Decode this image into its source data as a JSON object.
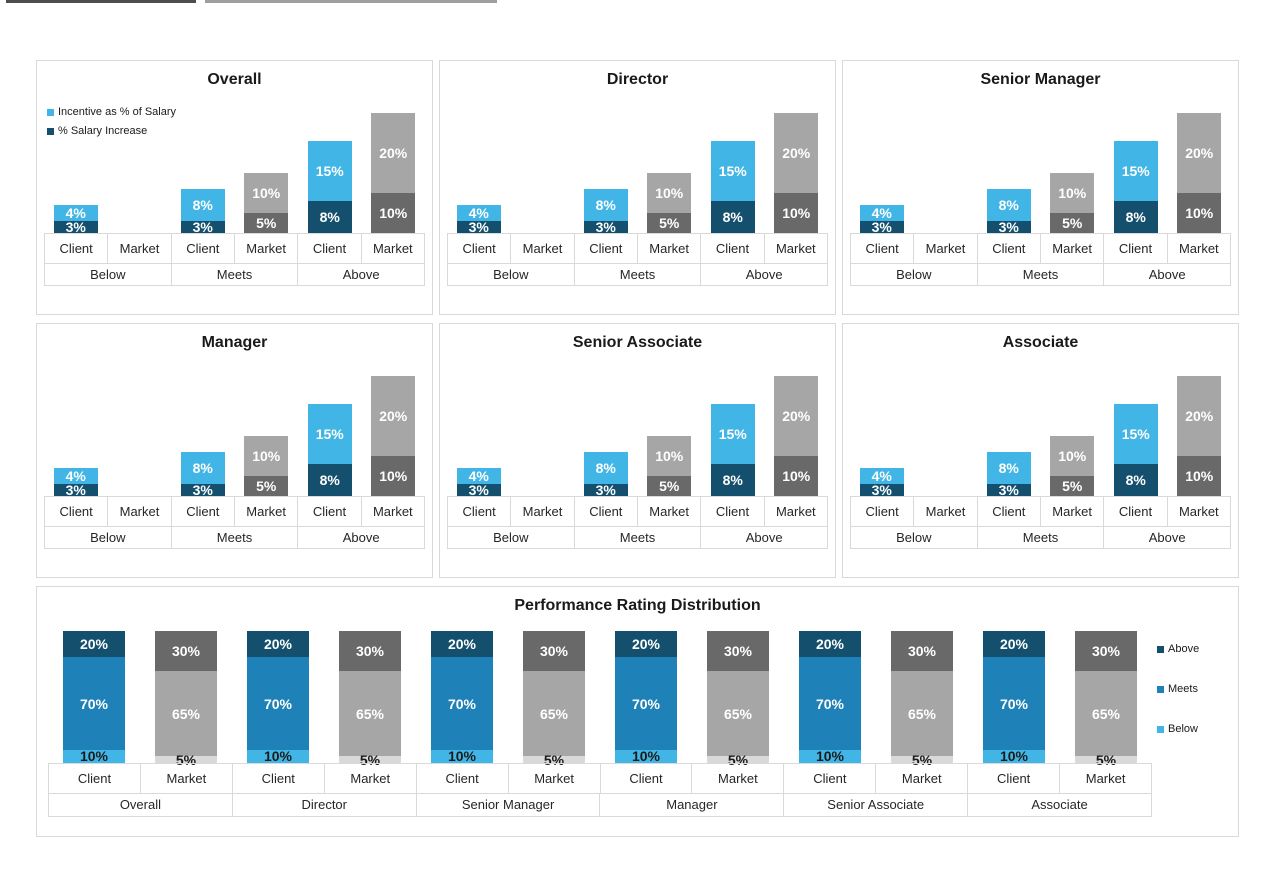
{
  "colors": {
    "incentive_client": "#41B6E6",
    "increase_client": "#14506E",
    "incentive_market": "#A6A6A6",
    "increase_market": "#696969",
    "dist_below_client": "#41B6E6",
    "dist_meets_client": "#1E81B8",
    "dist_above_client": "#14506E",
    "dist_below_market": "#D9D9D9",
    "dist_meets_market": "#A6A6A6",
    "dist_above_market": "#696969",
    "panel_border": "#D9D9D9",
    "value_label_light": "#FFFFFF",
    "value_label_dark": "#1A1A1A"
  },
  "panels": {
    "titles": [
      "Overall",
      "Director",
      "Senior Manager",
      "Manager",
      "Senior Associate",
      "Associate"
    ],
    "legend": {
      "incentive_label": "Incentive as % of Salary",
      "increase_label": "% Salary Increase"
    },
    "axis_series_labels": [
      "Client",
      "Market"
    ],
    "axis_group_labels": [
      "Below",
      "Meets",
      "Above"
    ],
    "values": {
      "client": {
        "incentive": [
          4,
          8,
          15
        ],
        "increase": [
          3,
          3,
          8
        ]
      },
      "market": {
        "incentive": [
          0,
          10,
          20
        ],
        "increase": [
          0,
          5,
          10
        ]
      }
    }
  },
  "distribution": {
    "title": "Performance Rating Distribution",
    "groups": [
      "Overall",
      "Director",
      "Senior Manager",
      "Manager",
      "Senior Associate",
      "Associate"
    ],
    "axis_series_labels": [
      "Client",
      "Market"
    ],
    "legend_labels": [
      "Above",
      "Meets",
      "Below"
    ],
    "client": {
      "below": 10,
      "meets": 70,
      "above": 20
    },
    "market": {
      "below": 5,
      "meets": 65,
      "above": 30
    }
  },
  "chart_data": [
    {
      "type": "bar",
      "variant": "grouped-stacked",
      "title": "Overall",
      "categories": [
        "Below",
        "Meets",
        "Above"
      ],
      "bar_groups": [
        "Client",
        "Market"
      ],
      "series": [
        {
          "name": "% Salary Increase (Client)",
          "values": [
            3,
            3,
            8
          ]
        },
        {
          "name": "Incentive as % of Salary (Client)",
          "values": [
            4,
            8,
            15
          ]
        },
        {
          "name": "% Salary Increase (Market)",
          "values": [
            0,
            5,
            10
          ]
        },
        {
          "name": "Incentive as % of Salary (Market)",
          "values": [
            0,
            10,
            20
          ]
        }
      ],
      "unit": "%",
      "legend": [
        "Incentive as % of Salary",
        "% Salary Increase"
      ],
      "legend_position": "top-left",
      "legend_visible": true
    },
    {
      "type": "bar",
      "variant": "grouped-stacked",
      "title": "Director",
      "categories": [
        "Below",
        "Meets",
        "Above"
      ],
      "bar_groups": [
        "Client",
        "Market"
      ],
      "series": [
        {
          "name": "% Salary Increase (Client)",
          "values": [
            3,
            3,
            8
          ]
        },
        {
          "name": "Incentive as % of Salary (Client)",
          "values": [
            4,
            8,
            15
          ]
        },
        {
          "name": "% Salary Increase (Market)",
          "values": [
            0,
            5,
            10
          ]
        },
        {
          "name": "Incentive as % of Salary (Market)",
          "values": [
            0,
            10,
            20
          ]
        }
      ],
      "unit": "%",
      "legend_visible": false
    },
    {
      "type": "bar",
      "variant": "grouped-stacked",
      "title": "Senior Manager",
      "categories": [
        "Below",
        "Meets",
        "Above"
      ],
      "bar_groups": [
        "Client",
        "Market"
      ],
      "series": [
        {
          "name": "% Salary Increase (Client)",
          "values": [
            3,
            3,
            8
          ]
        },
        {
          "name": "Incentive as % of Salary (Client)",
          "values": [
            4,
            8,
            15
          ]
        },
        {
          "name": "% Salary Increase (Market)",
          "values": [
            0,
            5,
            10
          ]
        },
        {
          "name": "Incentive as % of Salary (Market)",
          "values": [
            0,
            10,
            20
          ]
        }
      ],
      "unit": "%",
      "legend_visible": false
    },
    {
      "type": "bar",
      "variant": "grouped-stacked",
      "title": "Manager",
      "categories": [
        "Below",
        "Meets",
        "Above"
      ],
      "bar_groups": [
        "Client",
        "Market"
      ],
      "series": [
        {
          "name": "% Salary Increase (Client)",
          "values": [
            3,
            3,
            8
          ]
        },
        {
          "name": "Incentive as % of Salary (Client)",
          "values": [
            4,
            8,
            15
          ]
        },
        {
          "name": "% Salary Increase (Market)",
          "values": [
            0,
            5,
            10
          ]
        },
        {
          "name": "Incentive as % of Salary (Market)",
          "values": [
            0,
            10,
            20
          ]
        }
      ],
      "unit": "%",
      "legend_visible": false
    },
    {
      "type": "bar",
      "variant": "grouped-stacked",
      "title": "Senior Associate",
      "categories": [
        "Below",
        "Meets",
        "Above"
      ],
      "bar_groups": [
        "Client",
        "Market"
      ],
      "series": [
        {
          "name": "% Salary Increase (Client)",
          "values": [
            3,
            3,
            8
          ]
        },
        {
          "name": "Incentive as % of Salary (Client)",
          "values": [
            4,
            8,
            15
          ]
        },
        {
          "name": "% Salary Increase (Market)",
          "values": [
            0,
            5,
            10
          ]
        },
        {
          "name": "Incentive as % of Salary (Market)",
          "values": [
            0,
            10,
            20
          ]
        }
      ],
      "unit": "%",
      "legend_visible": false
    },
    {
      "type": "bar",
      "variant": "grouped-stacked",
      "title": "Associate",
      "categories": [
        "Below",
        "Meets",
        "Above"
      ],
      "bar_groups": [
        "Client",
        "Market"
      ],
      "series": [
        {
          "name": "% Salary Increase (Client)",
          "values": [
            3,
            3,
            8
          ]
        },
        {
          "name": "Incentive as % of Salary (Client)",
          "values": [
            4,
            8,
            15
          ]
        },
        {
          "name": "% Salary Increase (Market)",
          "values": [
            0,
            5,
            10
          ]
        },
        {
          "name": "Incentive as % of Salary (Market)",
          "values": [
            0,
            10,
            20
          ]
        }
      ],
      "unit": "%",
      "legend_visible": false
    },
    {
      "type": "bar",
      "variant": "stacked-100",
      "title": "Performance Rating Distribution",
      "groups": [
        "Overall",
        "Director",
        "Senior Manager",
        "Manager",
        "Senior Associate",
        "Associate"
      ],
      "bars_per_group": [
        "Client",
        "Market"
      ],
      "series": [
        {
          "name": "Below",
          "client": 10,
          "market": 5
        },
        {
          "name": "Meets",
          "client": 70,
          "market": 65
        },
        {
          "name": "Above",
          "client": 20,
          "market": 30
        }
      ],
      "unit": "%",
      "legend": [
        "Above",
        "Meets",
        "Below"
      ],
      "legend_position": "right"
    }
  ]
}
